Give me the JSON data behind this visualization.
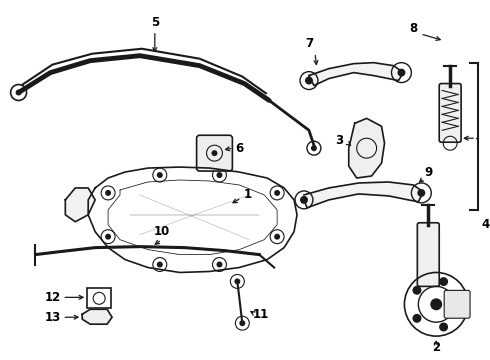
{
  "background_color": "#ffffff",
  "line_color": "#1a1a1a",
  "label_color": "#000000",
  "fig_width": 4.9,
  "fig_height": 3.6,
  "dpi": 100
}
